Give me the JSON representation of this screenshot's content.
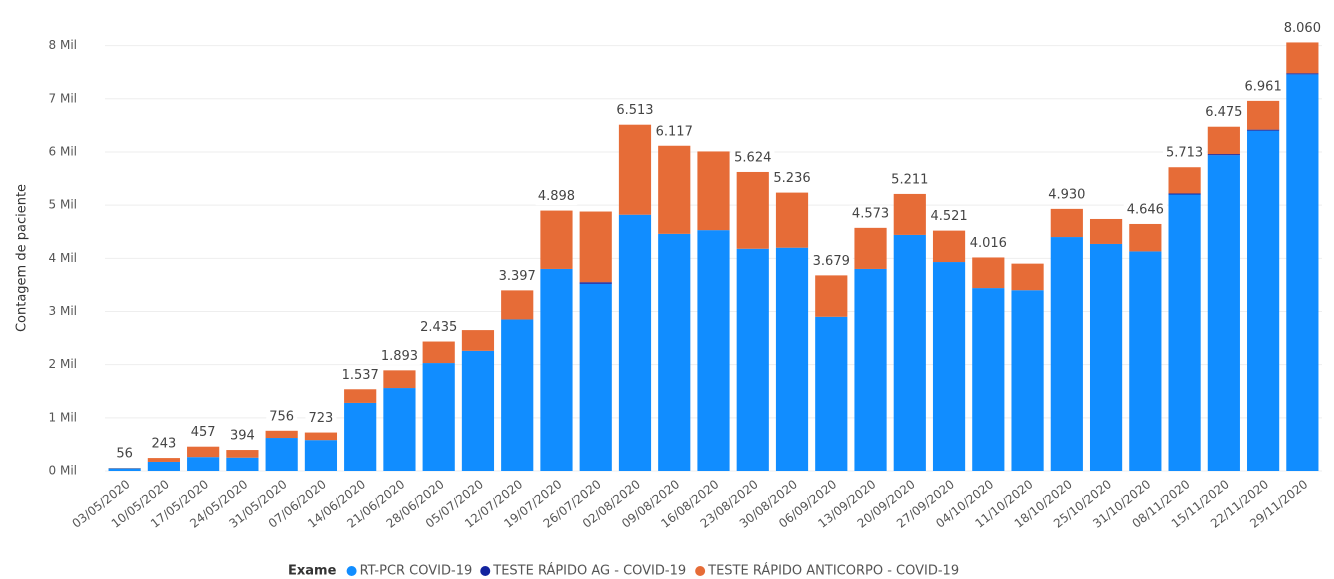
{
  "chart_data": {
    "type": "stacked_bar",
    "y_label": "Contagem de paciente",
    "legend_title": "Exame",
    "categories": [
      "03/05/2020",
      "10/05/2020",
      "17/05/2020",
      "24/05/2020",
      "31/05/2020",
      "07/06/2020",
      "14/06/2020",
      "21/06/2020",
      "28/06/2020",
      "05/07/2020",
      "12/07/2020",
      "19/07/2020",
      "26/07/2020",
      "02/08/2020",
      "09/08/2020",
      "16/08/2020",
      "23/08/2020",
      "30/08/2020",
      "06/09/2020",
      "13/09/2020",
      "20/09/2020",
      "27/09/2020",
      "04/10/2020",
      "11/10/2020",
      "18/10/2020",
      "25/10/2020",
      "31/10/2020",
      "08/11/2020",
      "15/11/2020",
      "22/11/2020",
      "29/11/2020"
    ],
    "series": [
      {
        "name": "RT-PCR COVID-19",
        "color": "#118dff",
        "values": [
          50,
          170,
          260,
          250,
          620,
          580,
          1280,
          1560,
          2030,
          2260,
          2850,
          3800,
          3520,
          4820,
          4460,
          4530,
          4180,
          4200,
          2900,
          3800,
          4440,
          3930,
          3440,
          3400,
          4400,
          4270,
          4130,
          5200,
          5940,
          6400,
          7460
        ]
      },
      {
        "name": "TESTE RÁPIDO AG - COVID-19",
        "color": "#12239e",
        "values": [
          0,
          0,
          0,
          0,
          0,
          0,
          0,
          0,
          0,
          0,
          0,
          0,
          30,
          0,
          0,
          0,
          0,
          0,
          0,
          0,
          0,
          0,
          0,
          0,
          0,
          0,
          0,
          20,
          20,
          20,
          20
        ]
      },
      {
        "name": "TESTE RÁPIDO ANTICORPO - COVID-19",
        "color": "#e66c37",
        "values": [
          6,
          73,
          197,
          144,
          136,
          143,
          257,
          333,
          405,
          390,
          547,
          1098,
          1330,
          1693,
          1657,
          1480,
          1444,
          1036,
          779,
          773,
          771,
          591,
          576,
          500,
          530,
          470,
          516,
          493,
          515,
          541,
          580
        ]
      }
    ],
    "totals": {
      "values": [
        56,
        243,
        457,
        394,
        756,
        723,
        1537,
        1893,
        2435,
        null,
        3397,
        4898,
        null,
        6513,
        6117,
        null,
        5624,
        5236,
        3679,
        4573,
        5211,
        4521,
        4016,
        null,
        4930,
        null,
        4646,
        5713,
        6475,
        6961,
        8060
      ],
      "labels": [
        "56",
        "243",
        "457",
        "394",
        "756",
        "723",
        "1.537",
        "1.893",
        "2.435",
        null,
        "3.397",
        "4.898",
        null,
        "6.513",
        "6.117",
        null,
        "5.624",
        "5.236",
        "3.679",
        "4.573",
        "5.211",
        "4.521",
        "4.016",
        null,
        "4.930",
        null,
        "4.646",
        "5.713",
        "6.475",
        "6.961",
        "8.060"
      ]
    },
    "ylim": [
      0,
      8200
    ],
    "yticks": [
      {
        "value": 0,
        "label": "0 Mil"
      },
      {
        "value": 1000,
        "label": "1 Mil"
      },
      {
        "value": 2000,
        "label": "2 Mil"
      },
      {
        "value": 3000,
        "label": "3 Mil"
      },
      {
        "value": 4000,
        "label": "4 Mil"
      },
      {
        "value": 5000,
        "label": "5 Mil"
      },
      {
        "value": 6000,
        "label": "6 Mil"
      },
      {
        "value": 7000,
        "label": "7 Mil"
      },
      {
        "value": 8000,
        "label": "8 Mil"
      }
    ],
    "grid": true
  }
}
